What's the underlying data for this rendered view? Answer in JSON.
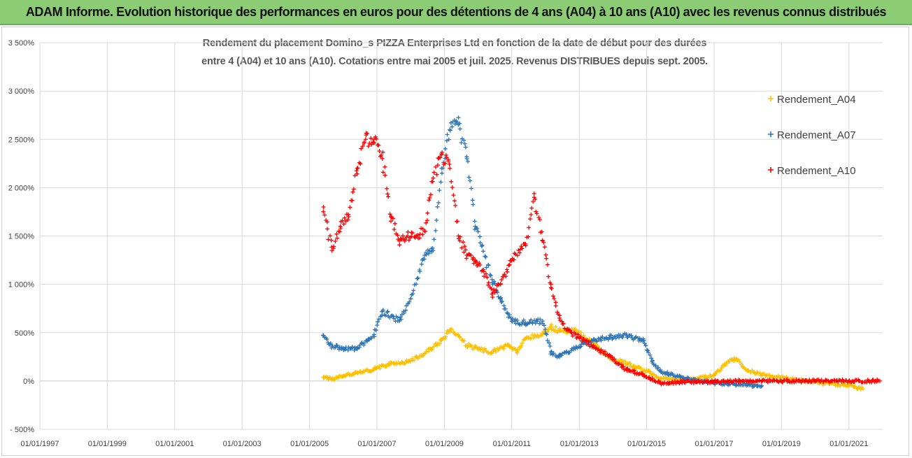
{
  "header": {
    "title": "ADAM Informe. Evolution historique des performances en euros pour des détentions de 4 ans (A04) à 10 ans (A10) avec les revenus connus distribués"
  },
  "chart_data": {
    "type": "scatter",
    "title_line1": "Rendement du placement Domino_s PIZZA Enterprises Ltd en fonction de la date de début pour des durées",
    "title_line2": "entre 4 (A04) et 10 ans (A10).  Cotations entre mai 2005 et juil. 2025.  Revenus DISTRIBUES depuis sept. 2005.",
    "xlabel": "",
    "ylabel": "",
    "x_ticks": [
      "01/01/1997",
      "01/01/1999",
      "01/01/2001",
      "01/01/2003",
      "01/01/2005",
      "01/01/2007",
      "01/01/2009",
      "01/01/2011",
      "01/01/2013",
      "01/01/2015",
      "01/01/2017",
      "01/01/2019",
      "01/01/2021"
    ],
    "y_ticks": [
      "- 500%",
      "0%",
      "500%",
      "1 000%",
      "1 500%",
      "2 000%",
      "2 500%",
      "3 000%",
      "3 500%"
    ],
    "xlim": [
      "1997-01-01",
      "2022-01-01"
    ],
    "ylim": [
      -500,
      3500
    ],
    "grid": true,
    "legend_position": "right",
    "series": [
      {
        "name": "Rendement_A04",
        "color": "#FFC000",
        "marker": "+",
        "points": [
          [
            "2005-06-01",
            40
          ],
          [
            "2005-09-01",
            20
          ],
          [
            "2006-01-01",
            50
          ],
          [
            "2006-06-01",
            90
          ],
          [
            "2006-12-01",
            120
          ],
          [
            "2007-06-01",
            180
          ],
          [
            "2007-12-01",
            200
          ],
          [
            "2008-06-01",
            280
          ],
          [
            "2008-12-01",
            420
          ],
          [
            "2009-03-01",
            530
          ],
          [
            "2009-06-01",
            470
          ],
          [
            "2009-09-01",
            370
          ],
          [
            "2010-01-01",
            330
          ],
          [
            "2010-06-01",
            300
          ],
          [
            "2010-12-01",
            370
          ],
          [
            "2011-03-01",
            300
          ],
          [
            "2011-06-01",
            440
          ],
          [
            "2011-12-01",
            480
          ],
          [
            "2012-03-01",
            560
          ],
          [
            "2012-06-01",
            520
          ],
          [
            "2012-12-01",
            520
          ],
          [
            "2013-06-01",
            380
          ],
          [
            "2013-12-01",
            240
          ],
          [
            "2014-06-01",
            180
          ],
          [
            "2015-01-01",
            100
          ],
          [
            "2015-06-01",
            30
          ],
          [
            "2016-01-01",
            10
          ],
          [
            "2016-06-01",
            20
          ],
          [
            "2017-01-01",
            60
          ],
          [
            "2017-06-01",
            200
          ],
          [
            "2017-09-01",
            230
          ],
          [
            "2018-01-01",
            110
          ],
          [
            "2018-06-01",
            70
          ],
          [
            "2019-01-01",
            40
          ],
          [
            "2019-06-01",
            10
          ],
          [
            "2020-01-01",
            -10
          ],
          [
            "2020-06-01",
            -30
          ],
          [
            "2021-01-01",
            -50
          ],
          [
            "2021-06-01",
            -80
          ]
        ]
      },
      {
        "name": "Rendement_A07",
        "color": "#2E75B6",
        "marker": "+",
        "points": [
          [
            "2005-06-01",
            470
          ],
          [
            "2005-09-01",
            360
          ],
          [
            "2006-01-01",
            340
          ],
          [
            "2006-06-01",
            330
          ],
          [
            "2006-12-01",
            480
          ],
          [
            "2007-03-01",
            720
          ],
          [
            "2007-09-01",
            620
          ],
          [
            "2008-01-01",
            850
          ],
          [
            "2008-06-01",
            1300
          ],
          [
            "2008-09-01",
            1350
          ],
          [
            "2008-12-01",
            2200
          ],
          [
            "2009-03-01",
            2600
          ],
          [
            "2009-06-01",
            2650
          ],
          [
            "2009-09-01",
            2300
          ],
          [
            "2009-12-01",
            1600
          ],
          [
            "2010-06-01",
            1050
          ],
          [
            "2010-09-01",
            850
          ],
          [
            "2011-01-01",
            620
          ],
          [
            "2011-06-01",
            600
          ],
          [
            "2011-12-01",
            620
          ],
          [
            "2012-03-01",
            300
          ],
          [
            "2012-06-01",
            250
          ],
          [
            "2012-12-01",
            350
          ],
          [
            "2013-06-01",
            420
          ],
          [
            "2013-12-01",
            450
          ],
          [
            "2014-06-01",
            470
          ],
          [
            "2014-12-01",
            420
          ],
          [
            "2015-03-01",
            200
          ],
          [
            "2015-06-01",
            100
          ],
          [
            "2016-01-01",
            40
          ],
          [
            "2016-06-01",
            10
          ],
          [
            "2017-01-01",
            -20
          ],
          [
            "2017-06-01",
            -30
          ],
          [
            "2018-01-01",
            -40
          ],
          [
            "2018-06-01",
            -50
          ]
        ]
      },
      {
        "name": "Rendement_A10",
        "color": "#FF0000",
        "marker": "+",
        "points": [
          [
            "2005-06-01",
            1800
          ],
          [
            "2005-09-01",
            1350
          ],
          [
            "2005-12-01",
            1600
          ],
          [
            "2006-03-01",
            1700
          ],
          [
            "2006-06-01",
            2200
          ],
          [
            "2006-09-01",
            2500
          ],
          [
            "2006-12-01",
            2500
          ],
          [
            "2007-03-01",
            2300
          ],
          [
            "2007-06-01",
            1700
          ],
          [
            "2007-09-01",
            1450
          ],
          [
            "2007-12-01",
            1500
          ],
          [
            "2008-03-01",
            1500
          ],
          [
            "2008-06-01",
            1550
          ],
          [
            "2008-09-01",
            2100
          ],
          [
            "2008-12-01",
            2350
          ],
          [
            "2009-03-01",
            2200
          ],
          [
            "2009-06-01",
            1500
          ],
          [
            "2009-09-01",
            1300
          ],
          [
            "2009-12-01",
            1250
          ],
          [
            "2010-03-01",
            1150
          ],
          [
            "2010-06-01",
            900
          ],
          [
            "2010-09-01",
            1000
          ],
          [
            "2011-01-01",
            1250
          ],
          [
            "2011-06-01",
            1400
          ],
          [
            "2011-09-01",
            1900
          ],
          [
            "2011-12-01",
            1450
          ],
          [
            "2012-03-01",
            1000
          ],
          [
            "2012-06-01",
            650
          ],
          [
            "2012-09-01",
            520
          ],
          [
            "2013-01-01",
            450
          ],
          [
            "2013-06-01",
            360
          ],
          [
            "2013-12-01",
            250
          ],
          [
            "2014-06-01",
            120
          ],
          [
            "2014-12-01",
            60
          ],
          [
            "2015-06-01",
            -20
          ],
          [
            "2016-01-01",
            -10
          ],
          [
            "2017-01-01",
            -5
          ],
          [
            "2018-01-01",
            0
          ],
          [
            "2019-01-01",
            0
          ],
          [
            "2020-01-01",
            0
          ],
          [
            "2021-01-01",
            0
          ],
          [
            "2021-12-01",
            0
          ]
        ]
      }
    ]
  }
}
